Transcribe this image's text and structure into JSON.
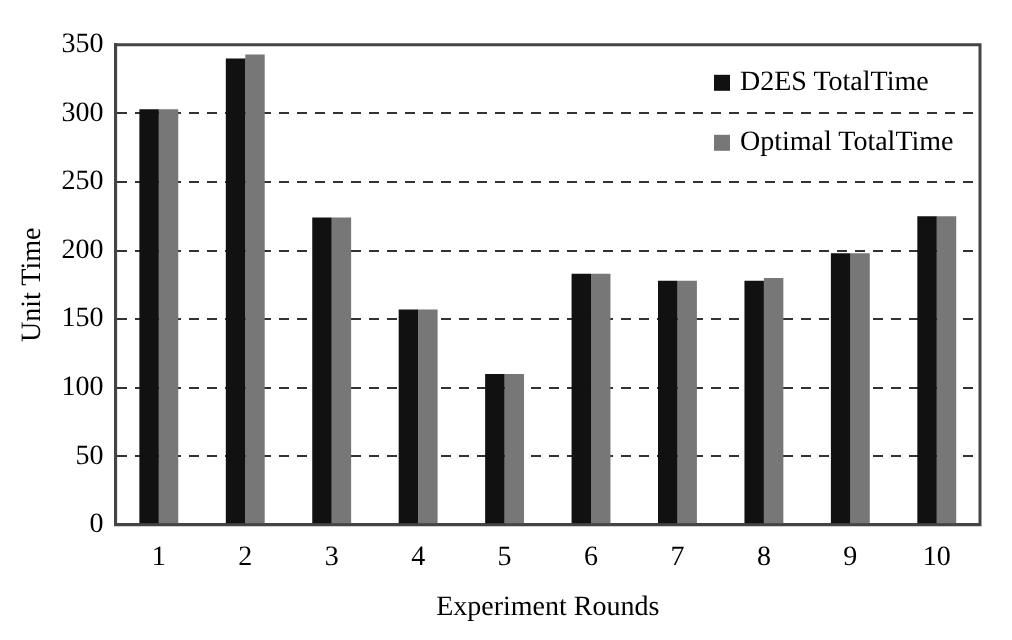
{
  "chart_data": {
    "type": "bar",
    "xlabel": "Experiment Rounds",
    "ylabel": "Unit Time",
    "categories": [
      "1",
      "2",
      "3",
      "4",
      "5",
      "6",
      "7",
      "8",
      "9",
      "10"
    ],
    "series": [
      {
        "name": "D2ES TotalTime",
        "color": "#111111",
        "values": [
          303,
          340,
          224,
          157,
          110,
          183,
          178,
          178,
          198,
          225
        ]
      },
      {
        "name": "Optimal TotalTime",
        "color": "#777777",
        "values": [
          303,
          343,
          224,
          157,
          110,
          183,
          178,
          180,
          198,
          225
        ]
      }
    ],
    "ylim": [
      0,
      350
    ],
    "yticks": [
      0,
      50,
      100,
      150,
      200,
      250,
      300,
      350
    ],
    "grid": "y",
    "legend": "top right"
  }
}
